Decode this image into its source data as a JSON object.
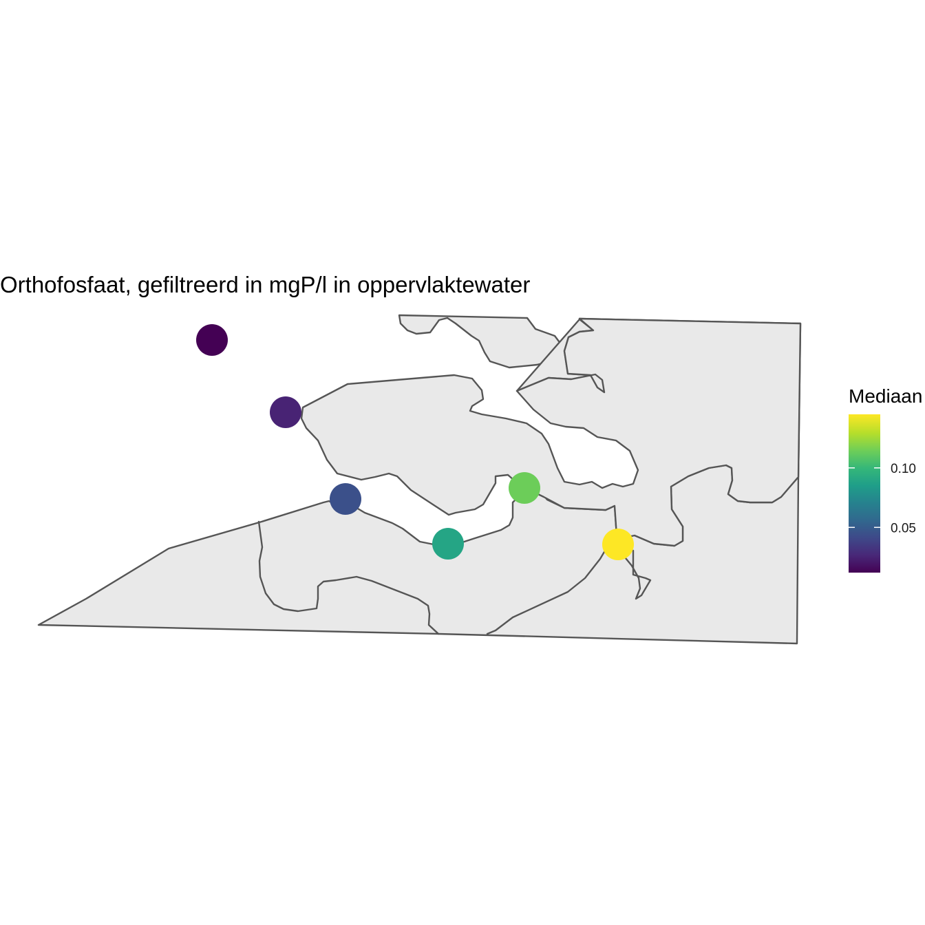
{
  "chart_data": {
    "type": "map",
    "title": "Orthofosfaat, gefiltreerd in mgP/l in oppervlaktewater",
    "legend": {
      "title": "Mediaan",
      "placement": "right",
      "scale": "viridis",
      "range": [
        0.012,
        0.145
      ],
      "ticks": [
        {
          "value": 0.05,
          "label": "0.05"
        },
        {
          "value": 0.1,
          "label": "0.10"
        }
      ]
    },
    "points": [
      {
        "value": 0.012
      },
      {
        "value": 0.025
      },
      {
        "value": 0.045
      },
      {
        "value": 0.09
      },
      {
        "value": 0.115
      },
      {
        "value": 0.145
      }
    ],
    "colors": {
      "land_fill": "#e9e9e9",
      "outline": "#555555",
      "viridis": [
        "#440154",
        "#482878",
        "#3e4989",
        "#31688e",
        "#26828e",
        "#1f9e89",
        "#35b779",
        "#6ece58",
        "#b5de2b",
        "#fde725"
      ]
    }
  }
}
